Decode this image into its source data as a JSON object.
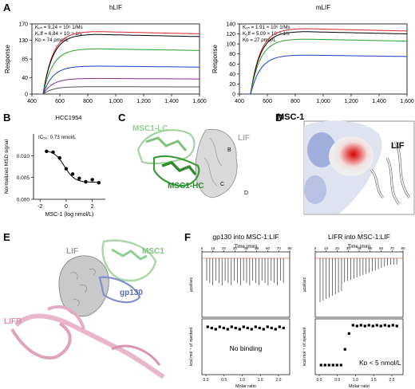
{
  "panel_labels": {
    "a": "A",
    "b": "B",
    "c": "C",
    "d": "D",
    "e": "E",
    "f": "F"
  },
  "panel_a": {
    "hlif": {
      "title": "hLIF",
      "kon": "Kₒₙ = 9.24 × 10⁵ 1/Ms",
      "koff": "Kₒff = 6.84 × 10⁻⁵ 1/s",
      "kd": "Kᴅ = 74 pmol/L",
      "ylabel": "Response"
    },
    "mlif": {
      "title": "mLIF",
      "kon": "Kₒₙ = 1.91 × 10⁶ 1/Ms",
      "koff": "Kₒff = 5.09 × 10⁻⁵ 1/s",
      "kd": "Kᴅ = 27 pmol/L",
      "ylabel": "Response"
    }
  },
  "panel_b": {
    "title": "HCC1954",
    "ic50": "IC₅₀: 0.73 nmol/L",
    "ylabel": "Normalized MSD signal",
    "xlabel": "MSC-1 (log nmol/L)"
  },
  "panel_c": {
    "lc": "MSC1-LC",
    "hc": "MSC1-HC",
    "lif": "LIF",
    "b": "B",
    "cc": "C",
    "d": "D"
  },
  "panel_d": {
    "msc": "MSC-1",
    "lif": "LIF"
  },
  "panel_e": {
    "lif": "LIF",
    "msc1": "MSC1",
    "gp130": "gp130",
    "lifr": "LIFR"
  },
  "panel_f": {
    "left": {
      "title": "gp130 into MSC-1:LIF",
      "time": "Time (min)",
      "ytop": "µcal/sec",
      "ybot": "kcal mol⁻¹ of injectant",
      "xlabel": "Molar ratio",
      "note": "No binding"
    },
    "right": {
      "title": "LIFR into MSC-1:LIF",
      "time": "Time (min)",
      "ytop": "µcal/sec",
      "ybot": "kcal mol⁻¹ of injectant",
      "xlabel": "Molar ratio",
      "note": "Kᴅ < 5 nmol/L"
    }
  },
  "chart_data": [
    {
      "type": "line",
      "title": "hLIF",
      "ylabel": "Response",
      "xlim": [
        400,
        1600
      ],
      "ylim": [
        0,
        170
      ],
      "xticks": [
        400,
        600,
        800,
        1000,
        1200,
        1400,
        1600
      ],
      "yticks": [
        0,
        40,
        85,
        130,
        170
      ],
      "series": [
        {
          "values_plateau": 152
        },
        {
          "values_plateau": 145
        },
        {
          "values_plateau": 110
        },
        {
          "values_plateau": 68
        },
        {
          "values_plateau": 38
        },
        {
          "values_plateau": 18
        }
      ]
    },
    {
      "type": "line",
      "title": "mLIF",
      "ylabel": "Response",
      "xlim": [
        400,
        1600
      ],
      "ylim": [
        0,
        140
      ],
      "xticks": [
        400,
        600,
        800,
        1000,
        1200,
        1400,
        1600
      ],
      "yticks": [
        0,
        20,
        40,
        60,
        80,
        100,
        120,
        140
      ],
      "series": [
        {
          "values_plateau": 131
        },
        {
          "values_plateau": 125
        },
        {
          "values_plateau": 110
        },
        {
          "values_plateau": 78
        }
      ]
    },
    {
      "type": "scatter",
      "title": "HCC1954",
      "xlabel": "MSC-1 (log nmol/L)",
      "ylabel": "Normalized MSD signal",
      "xlim": [
        -2.5,
        3
      ],
      "ylim": [
        0,
        0.015
      ],
      "xticks": [
        -2,
        0,
        2
      ],
      "yticks": [
        0,
        0.005,
        0.01
      ],
      "x": [
        -1.5,
        -1,
        -0.5,
        0,
        0.5,
        1,
        1.5,
        2,
        2.5
      ],
      "y": [
        0.011,
        0.0108,
        0.0095,
        0.007,
        0.0058,
        0.0048,
        0.004,
        0.0045,
        0.0038
      ]
    }
  ]
}
